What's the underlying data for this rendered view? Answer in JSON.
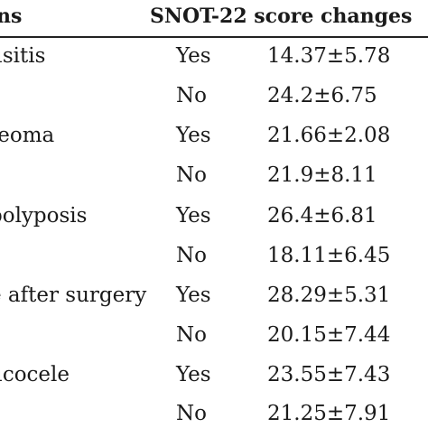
{
  "table": {
    "header": {
      "label": "ns",
      "score": "SNOT-22 score changes"
    },
    "rows": [
      {
        "label": "usitis",
        "option": "Yes",
        "value": "14.37±5.78"
      },
      {
        "label": "",
        "option": "No",
        "value": "24.2±6.75"
      },
      {
        "label": "teoma",
        "option": "Yes",
        "value": "21.66±2.08"
      },
      {
        "label": "",
        "option": "No",
        "value": "21.9±8.11"
      },
      {
        "label": "polyposis",
        "option": "Yes",
        "value": "26.4±6.81"
      },
      {
        "label": "",
        "option": "No",
        "value": "18.11±6.45"
      },
      {
        "label": "e after surgery",
        "option": "Yes",
        "value": "28.29±5.31"
      },
      {
        "label": "",
        "option": "No",
        "value": "20.15±7.44"
      },
      {
        "label": "ucocele",
        "option": "Yes",
        "value": "23.55±7.43"
      },
      {
        "label": "",
        "option": "No",
        "value": "21.25±7.91"
      }
    ]
  }
}
